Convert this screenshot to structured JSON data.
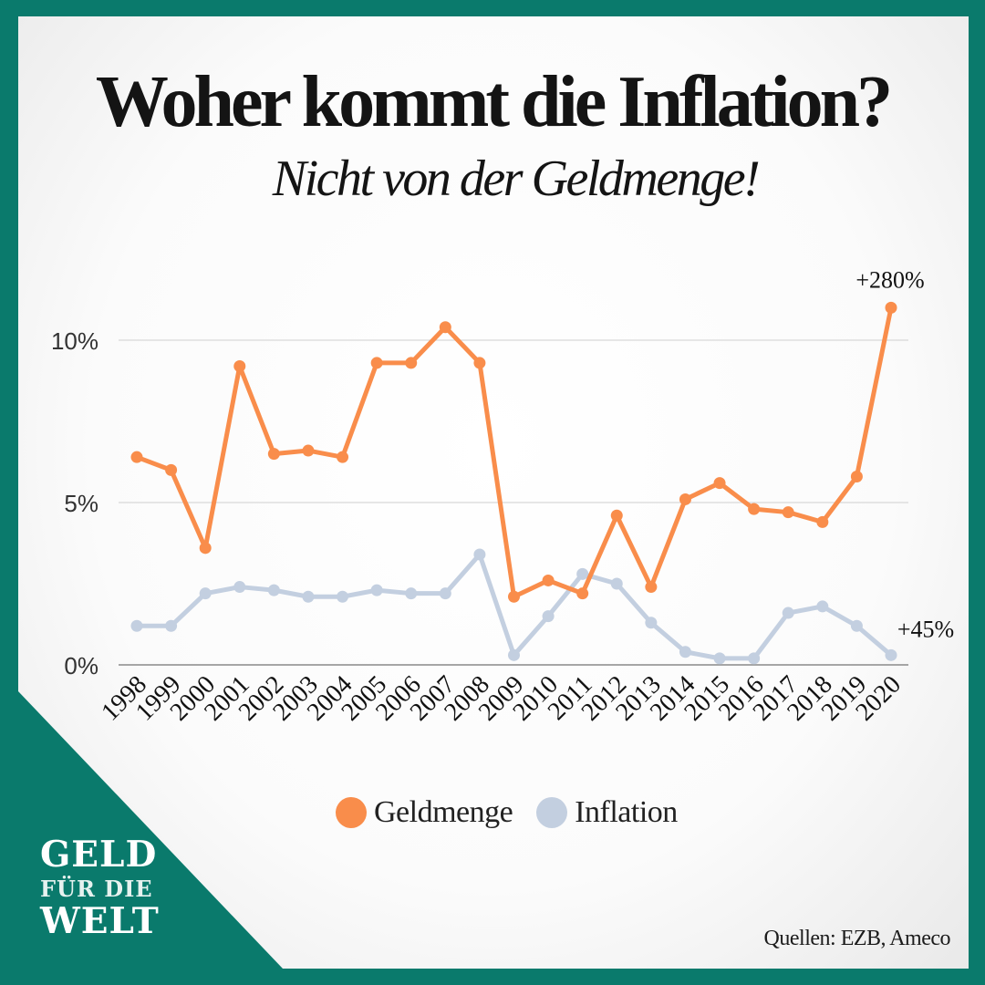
{
  "page": {
    "title": "Woher kommt die Inflation?",
    "subtitle": "Nicht von der Geldmenge!",
    "source": "Quellen: EZB, Ameco",
    "logo": {
      "line1": "GELD",
      "line2": "FÜR DIE",
      "line3": "WELT"
    },
    "background_color": "#0a7a6c"
  },
  "chart_data": {
    "type": "line",
    "title": "Woher kommt die Inflation?",
    "xlabel": "",
    "ylabel": "",
    "ylim": [
      0,
      11
    ],
    "yticks": [
      {
        "value": 0,
        "label": "0%"
      },
      {
        "value": 5,
        "label": "5%"
      },
      {
        "value": 10,
        "label": "10%"
      }
    ],
    "grid": true,
    "legend_position": "bottom-center",
    "categories": [
      "1998",
      "1999",
      "2000",
      "2001",
      "2002",
      "2003",
      "2004",
      "2005",
      "2006",
      "2007",
      "2008",
      "2009",
      "2010",
      "2011",
      "2012",
      "2013",
      "2014",
      "2015",
      "2016",
      "2017",
      "2018",
      "2019",
      "2020"
    ],
    "series": [
      {
        "name": "Geldmenge",
        "color": "#f98d4b",
        "values": [
          6.4,
          6.0,
          3.6,
          9.2,
          6.5,
          6.6,
          6.4,
          9.3,
          9.3,
          10.4,
          9.3,
          2.1,
          2.6,
          2.2,
          4.6,
          2.4,
          5.1,
          5.6,
          4.8,
          4.7,
          4.4,
          5.8,
          11.0
        ],
        "end_annotation": "+280%"
      },
      {
        "name": "Inflation",
        "color": "#c3cfe0",
        "values": [
          1.2,
          1.2,
          2.2,
          2.4,
          2.3,
          2.1,
          2.1,
          2.3,
          2.2,
          2.2,
          3.4,
          0.3,
          1.5,
          2.8,
          2.5,
          1.3,
          0.4,
          0.2,
          0.2,
          1.6,
          1.8,
          1.2,
          0.3
        ],
        "end_annotation": "+45%"
      }
    ]
  }
}
